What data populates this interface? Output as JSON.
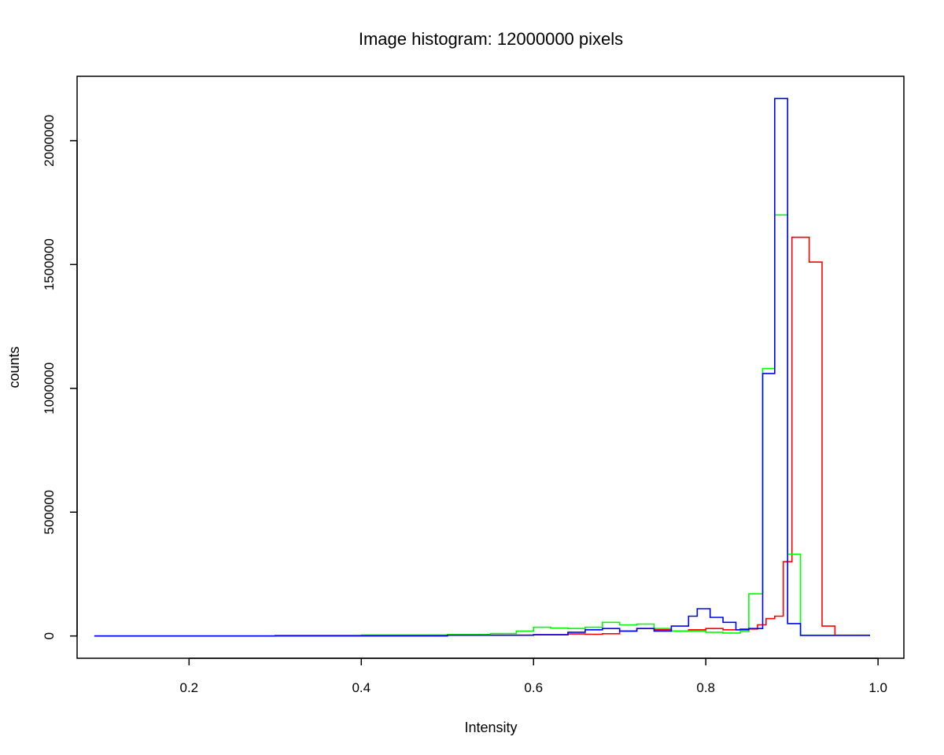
{
  "chart_data": {
    "type": "line",
    "step": true,
    "title": "Image histogram: 12000000 pixels",
    "xlabel": "Intensity",
    "ylabel": "counts",
    "xlim": [
      0.07,
      1.03
    ],
    "ylim": [
      -90000,
      2260000
    ],
    "xticks": [
      0.2,
      0.4,
      0.6,
      0.8,
      1.0
    ],
    "xtick_labels": [
      "0.2",
      "0.4",
      "0.6",
      "0.8",
      "1.0"
    ],
    "yticks": [
      0,
      500000,
      1000000,
      1500000,
      2000000
    ],
    "ytick_labels": [
      "0",
      "500000",
      "1000000",
      "1500000",
      "2000000"
    ],
    "grid": false,
    "legend": "none",
    "series": [
      {
        "color": "#ff0000",
        "points": [
          [
            0.09,
            0
          ],
          [
            0.3,
            0
          ],
          [
            0.5,
            3000
          ],
          [
            0.6,
            5000
          ],
          [
            0.64,
            8000
          ],
          [
            0.66,
            7000
          ],
          [
            0.68,
            9000
          ],
          [
            0.7,
            20000
          ],
          [
            0.72,
            30000
          ],
          [
            0.74,
            25000
          ],
          [
            0.76,
            20000
          ],
          [
            0.78,
            25000
          ],
          [
            0.8,
            30000
          ],
          [
            0.82,
            25000
          ],
          [
            0.84,
            28000
          ],
          [
            0.86,
            45000
          ],
          [
            0.87,
            70000
          ],
          [
            0.88,
            80000
          ],
          [
            0.89,
            300000
          ],
          [
            0.9,
            1610000
          ],
          [
            0.92,
            1510000
          ],
          [
            0.935,
            40000
          ],
          [
            0.95,
            3000
          ],
          [
            0.99,
            0
          ]
        ]
      },
      {
        "color": "#00ff00",
        "points": [
          [
            0.09,
            0
          ],
          [
            0.3,
            2000
          ],
          [
            0.4,
            4000
          ],
          [
            0.5,
            6000
          ],
          [
            0.55,
            10000
          ],
          [
            0.58,
            20000
          ],
          [
            0.6,
            35000
          ],
          [
            0.62,
            32000
          ],
          [
            0.64,
            30000
          ],
          [
            0.66,
            35000
          ],
          [
            0.68,
            55000
          ],
          [
            0.7,
            45000
          ],
          [
            0.72,
            48000
          ],
          [
            0.74,
            30000
          ],
          [
            0.76,
            20000
          ],
          [
            0.8,
            15000
          ],
          [
            0.82,
            12000
          ],
          [
            0.84,
            18000
          ],
          [
            0.85,
            170000
          ],
          [
            0.866,
            1080000
          ],
          [
            0.88,
            1700000
          ],
          [
            0.895,
            330000
          ],
          [
            0.91,
            3000
          ],
          [
            0.99,
            0
          ]
        ]
      },
      {
        "color": "#0000ff",
        "points": [
          [
            0.09,
            0
          ],
          [
            0.3,
            1000
          ],
          [
            0.5,
            3000
          ],
          [
            0.6,
            5000
          ],
          [
            0.64,
            15000
          ],
          [
            0.66,
            25000
          ],
          [
            0.68,
            30000
          ],
          [
            0.7,
            20000
          ],
          [
            0.72,
            30000
          ],
          [
            0.74,
            20000
          ],
          [
            0.76,
            40000
          ],
          [
            0.78,
            80000
          ],
          [
            0.79,
            110000
          ],
          [
            0.805,
            75000
          ],
          [
            0.82,
            55000
          ],
          [
            0.835,
            25000
          ],
          [
            0.85,
            30000
          ],
          [
            0.866,
            1060000
          ],
          [
            0.88,
            2170000
          ],
          [
            0.895,
            50000
          ],
          [
            0.91,
            2000
          ],
          [
            0.99,
            0
          ]
        ]
      }
    ]
  }
}
